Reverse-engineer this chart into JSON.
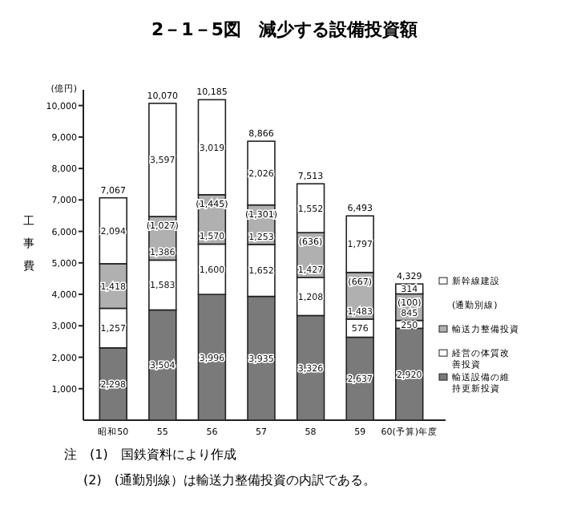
{
  "chart_data": {
    "type": "bar",
    "title": "2－1－5図　減少する設備投資額",
    "ylabel": "工事費",
    "stacked": true,
    "legend": "right",
    "grid": false,
    "categories": [
      "昭和50",
      "55",
      "56",
      "57",
      "58",
      "59",
      "60(予算)年度"
    ],
    "series": [
      {
        "name": "輸送設備の維持更新投資",
        "color": "#7a7a7a",
        "values": [
          2298,
          3504,
          3996,
          3935,
          3326,
          2637,
          2920
        ],
        "value_labels": [
          "2,298",
          "3,504",
          "3,996",
          "3,935",
          "3,326",
          "2,637",
          "2,920"
        ]
      },
      {
        "name": "経営の体質改善投資",
        "color": "#ffffff",
        "values": [
          1257,
          1583,
          1600,
          1652,
          1208,
          576,
          250
        ],
        "value_labels": [
          "1,257",
          "1,583",
          "1,600",
          "1,652",
          "1,208",
          "576",
          "250"
        ]
      },
      {
        "name": "輸送力整備投資",
        "color": "#b0b0b0",
        "values": [
          1418,
          1386,
          1570,
          1253,
          1427,
          1483,
          845
        ],
        "value_labels": [
          "1,418",
          "1,386",
          "1,570",
          "1,253",
          "1,427",
          "1,483",
          "845"
        ]
      },
      {
        "name": "新幹線建設",
        "color": "#ffffff",
        "values": [
          2094,
          3597,
          3019,
          2026,
          1552,
          1797,
          314
        ],
        "value_labels": [
          "2,094",
          "3,597",
          "3,019",
          "2,026",
          "1,552",
          "1,797",
          "314"
        ]
      }
    ],
    "totals": [
      "7,067",
      "10,070",
      "10,185",
      "8,866",
      "7,513",
      "6,493",
      "4,329"
    ],
    "ylim": [
      0,
      10500
    ],
    "yticks": [
      {
        "value": 1000,
        "label": "1,000"
      },
      {
        "value": 2000,
        "label": "2,000"
      },
      {
        "value": 3000,
        "label": "3,000"
      },
      {
        "value": 4000,
        "label": "4,000"
      },
      {
        "value": 5000,
        "label": "5,000"
      },
      {
        "value": 6000,
        "label": "6,000"
      },
      {
        "value": 7000,
        "label": "7,000"
      },
      {
        "value": 8000,
        "label": "8,000"
      },
      {
        "value": 9000,
        "label": "9,000"
      },
      {
        "value": 10000,
        "label": "10,000"
      }
    ],
    "annotations": [
      "(億円)",
      "(1,027)",
      "(1,445)",
      "(1,301)",
      "(636)",
      "(667)",
      "(100)",
      "(通勤別線)",
      "注　(1)　国鉄資料により作成",
      "(2)　(通勤別線）は輸送力整備投資の内訳である。"
    ]
  }
}
